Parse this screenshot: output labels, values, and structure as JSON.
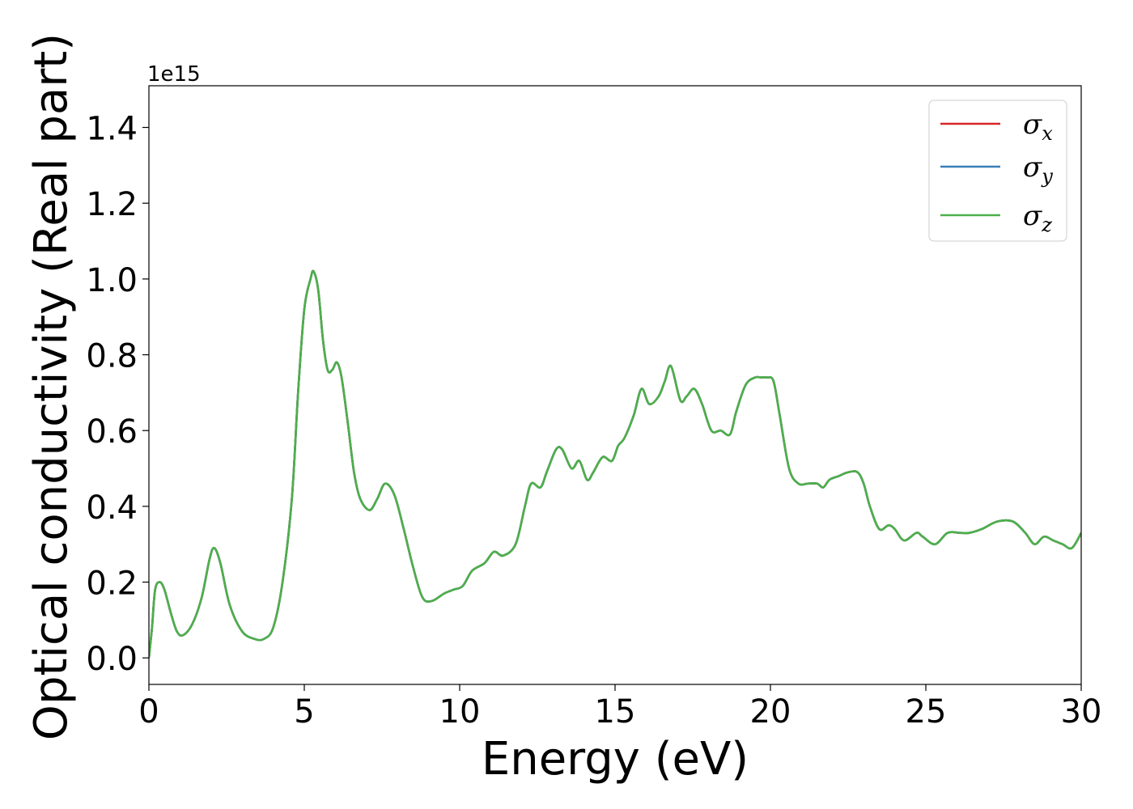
{
  "chart_data": {
    "type": "line",
    "xlabel": "Energy (eV)",
    "ylabel": "Optical conductivity (Real part)",
    "y_offset_text": "1e15",
    "xlim": [
      0,
      30
    ],
    "ylim": [
      -0.07,
      1.51
    ],
    "x_ticks": [
      0,
      5,
      10,
      15,
      20,
      25,
      30
    ],
    "x_tick_labels": [
      "0",
      "5",
      "10",
      "15",
      "20",
      "25",
      "30"
    ],
    "y_ticks": [
      0.0,
      0.2,
      0.4,
      0.6,
      0.8,
      1.0,
      1.2,
      1.4
    ],
    "y_tick_labels": [
      "0.0",
      "0.2",
      "0.4",
      "0.6",
      "0.8",
      "1.0",
      "1.2",
      "1.4"
    ],
    "grid": false,
    "legend_position": "upper right",
    "series": [
      {
        "name": "σx",
        "symbol": "σ",
        "subscript": "x",
        "color": "#d62728"
      },
      {
        "name": "σy",
        "symbol": "σ",
        "subscript": "y",
        "color": "#377eb8"
      },
      {
        "name": "σz",
        "symbol": "σ",
        "subscript": "z",
        "color": "#4daf4a"
      }
    ],
    "x": [
      0,
      0.1,
      0.2,
      0.35,
      0.5,
      0.7,
      0.9,
      1.1,
      1.4,
      1.7,
      1.95,
      2.1,
      2.3,
      2.6,
      3.0,
      3.4,
      3.7,
      4.0,
      4.3,
      4.6,
      4.8,
      5.0,
      5.2,
      5.3,
      5.45,
      5.6,
      5.75,
      5.9,
      6.05,
      6.2,
      6.4,
      6.6,
      6.8,
      7.1,
      7.35,
      7.6,
      7.9,
      8.2,
      8.5,
      8.8,
      9.1,
      9.5,
      9.8,
      10.1,
      10.4,
      10.8,
      11.1,
      11.4,
      11.8,
      12.1,
      12.3,
      12.6,
      12.8,
      13.1,
      13.3,
      13.6,
      13.85,
      14.1,
      14.3,
      14.6,
      14.9,
      15.1,
      15.3,
      15.6,
      15.85,
      16.1,
      16.4,
      16.6,
      16.8,
      17.1,
      17.3,
      17.55,
      17.8,
      18.1,
      18.4,
      18.7,
      18.9,
      19.2,
      19.5,
      19.7,
      19.9,
      20.1,
      20.3,
      20.6,
      20.9,
      21.2,
      21.5,
      21.7,
      21.9,
      22.2,
      22.5,
      22.8,
      23.0,
      23.2,
      23.5,
      23.8,
      24.0,
      24.3,
      24.7,
      24.9,
      25.3,
      25.7,
      26.1,
      26.4,
      26.8,
      27.3,
      27.8,
      28.2,
      28.5,
      28.8,
      29.1,
      29.4,
      29.7,
      30.0
    ],
    "y": [
      0.0,
      0.08,
      0.18,
      0.2,
      0.18,
      0.12,
      0.07,
      0.06,
      0.09,
      0.16,
      0.26,
      0.29,
      0.25,
      0.14,
      0.07,
      0.05,
      0.05,
      0.08,
      0.2,
      0.42,
      0.7,
      0.92,
      1.0,
      1.02,
      0.97,
      0.84,
      0.76,
      0.76,
      0.78,
      0.74,
      0.62,
      0.49,
      0.42,
      0.39,
      0.42,
      0.46,
      0.43,
      0.34,
      0.24,
      0.16,
      0.15,
      0.17,
      0.18,
      0.19,
      0.23,
      0.25,
      0.28,
      0.27,
      0.3,
      0.4,
      0.46,
      0.45,
      0.49,
      0.55,
      0.55,
      0.5,
      0.52,
      0.47,
      0.49,
      0.53,
      0.52,
      0.56,
      0.58,
      0.64,
      0.71,
      0.67,
      0.69,
      0.73,
      0.77,
      0.68,
      0.69,
      0.71,
      0.67,
      0.6,
      0.6,
      0.59,
      0.65,
      0.72,
      0.74,
      0.74,
      0.74,
      0.73,
      0.64,
      0.5,
      0.46,
      0.46,
      0.46,
      0.45,
      0.47,
      0.48,
      0.49,
      0.49,
      0.46,
      0.4,
      0.34,
      0.35,
      0.34,
      0.31,
      0.33,
      0.32,
      0.3,
      0.33,
      0.33,
      0.33,
      0.34,
      0.36,
      0.36,
      0.33,
      0.3,
      0.32,
      0.31,
      0.3,
      0.29,
      0.33
    ]
  }
}
